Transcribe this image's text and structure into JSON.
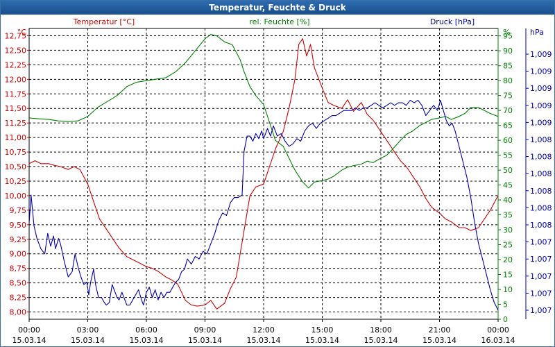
{
  "window": {
    "title": "Temperatur, Feuchte & Druck"
  },
  "colors": {
    "temperature": "#cc0000",
    "humidity": "#008000",
    "pressure": "#0000aa",
    "grid": "#000000",
    "titlebar": "#1f5a9c"
  },
  "chart_data": {
    "type": "line",
    "title": "Temperatur, Feuchte & Druck",
    "grid": true,
    "x": {
      "range": [
        0,
        24
      ],
      "ticks": [
        {
          "h": 0,
          "time": "00:00",
          "date": "15.03.14"
        },
        {
          "h": 3,
          "time": "03:00",
          "date": "15.03.14"
        },
        {
          "h": 6,
          "time": "06:00",
          "date": "15.03.14"
        },
        {
          "h": 9,
          "time": "09:00",
          "date": "15.03.14"
        },
        {
          "h": 12,
          "time": "12:00",
          "date": "15.03.14"
        },
        {
          "h": 15,
          "time": "15:00",
          "date": "15.03.14"
        },
        {
          "h": 18,
          "time": "18:00",
          "date": "15.03.14"
        },
        {
          "h": 21,
          "time": "21:00",
          "date": "15.03.14"
        },
        {
          "h": 24,
          "time": "00:00",
          "date": "16.03.14"
        }
      ]
    },
    "axes": {
      "temperature": {
        "unit": "°C",
        "label": "Temperatur [°C]",
        "range": [
          7.875,
          12.875
        ],
        "ticks": [
          "8,00",
          "8,25",
          "8,50",
          "8,75",
          "9,00",
          "9,25",
          "9,50",
          "9,75",
          "10,00",
          "10,25",
          "10,50",
          "10,75",
          "11,00",
          "11,25",
          "11,50",
          "11,75",
          "12,00",
          "12,25",
          "12,50",
          "12,75"
        ]
      },
      "humidity": {
        "unit": "%",
        "label": "rel. Feuchte [%]",
        "range": [
          0,
          97.5
        ],
        "ticks": [
          "0",
          "5",
          "10",
          "15",
          "20",
          "25",
          "30",
          "35",
          "40",
          "45",
          "50",
          "55",
          "60",
          "65",
          "70",
          "75",
          "80",
          "85",
          "90",
          "95"
        ]
      },
      "pressure": {
        "unit": "hPa",
        "label": "Druck [hPa]",
        "ticks": [
          "1,007",
          "1,007",
          "1,007",
          "1,007",
          "1,007",
          "1,008",
          "1,008",
          "1,008",
          "1,008",
          "1,008",
          "1,008",
          "1,009",
          "1,009",
          "1,009",
          "1,009",
          "1,009"
        ]
      }
    },
    "series": [
      {
        "name": "Temperatur [°C]",
        "axis": "temperature",
        "points": [
          [
            0,
            10.55
          ],
          [
            0.3,
            10.6
          ],
          [
            0.6,
            10.55
          ],
          [
            1,
            10.55
          ],
          [
            1.3,
            10.52
          ],
          [
            1.6,
            10.5
          ],
          [
            2,
            10.45
          ],
          [
            2.3,
            10.5
          ],
          [
            2.6,
            10.45
          ],
          [
            3,
            10.2
          ],
          [
            3.3,
            9.9
          ],
          [
            3.6,
            9.6
          ],
          [
            4,
            9.4
          ],
          [
            4.3,
            9.25
          ],
          [
            4.6,
            9.1
          ],
          [
            5,
            8.95
          ],
          [
            5.3,
            8.9
          ],
          [
            5.6,
            8.85
          ],
          [
            6,
            8.78
          ],
          [
            6.3,
            8.75
          ],
          [
            6.6,
            8.7
          ],
          [
            7,
            8.6
          ],
          [
            7.3,
            8.55
          ],
          [
            7.6,
            8.48
          ],
          [
            8,
            8.2
          ],
          [
            8.3,
            8.12
          ],
          [
            8.6,
            8.1
          ],
          [
            9,
            8.12
          ],
          [
            9.3,
            8.2
          ],
          [
            9.6,
            8.05
          ],
          [
            10,
            8.15
          ],
          [
            10.3,
            8.4
          ],
          [
            10.6,
            8.6
          ],
          [
            10.8,
            9.0
          ],
          [
            11,
            9.4
          ],
          [
            11.3,
            10
          ],
          [
            11.6,
            10.15
          ],
          [
            12,
            10.2
          ],
          [
            12.3,
            10.5
          ],
          [
            12.6,
            10.8
          ],
          [
            13,
            11.1
          ],
          [
            13.3,
            11.5
          ],
          [
            13.6,
            12.0
          ],
          [
            13.8,
            12.6
          ],
          [
            14,
            12.7
          ],
          [
            14.2,
            12.4
          ],
          [
            14.4,
            12.6
          ],
          [
            14.6,
            12.2
          ],
          [
            15,
            11.85
          ],
          [
            15.3,
            11.6
          ],
          [
            15.6,
            11.55
          ],
          [
            16,
            11.5
          ],
          [
            16.3,
            11.65
          ],
          [
            16.6,
            11.45
          ],
          [
            17,
            11.6
          ],
          [
            17.3,
            11.4
          ],
          [
            17.6,
            11.3
          ],
          [
            18,
            11.1
          ],
          [
            18.3,
            10.95
          ],
          [
            18.6,
            10.8
          ],
          [
            19,
            10.6
          ],
          [
            19.3,
            10.5
          ],
          [
            19.6,
            10.35
          ],
          [
            20,
            10.15
          ],
          [
            20.3,
            9.95
          ],
          [
            20.6,
            9.8
          ],
          [
            21,
            9.7
          ],
          [
            21.3,
            9.6
          ],
          [
            21.6,
            9.55
          ],
          [
            22,
            9.45
          ],
          [
            22.3,
            9.45
          ],
          [
            22.6,
            9.4
          ],
          [
            23,
            9.45
          ],
          [
            23.3,
            9.6
          ],
          [
            23.6,
            9.75
          ],
          [
            24,
            10.0
          ]
        ]
      },
      {
        "name": "rel. Feuchte [%]",
        "axis": "humidity",
        "points": [
          [
            0,
            67.5
          ],
          [
            0.5,
            67.2
          ],
          [
            1,
            67
          ],
          [
            1.5,
            66.5
          ],
          [
            2,
            66.3
          ],
          [
            2.5,
            66.5
          ],
          [
            3,
            68
          ],
          [
            3.5,
            71
          ],
          [
            4,
            73
          ],
          [
            4.5,
            75
          ],
          [
            5,
            78
          ],
          [
            5.5,
            79.5
          ],
          [
            6,
            80
          ],
          [
            6.5,
            80.5
          ],
          [
            7,
            81
          ],
          [
            7.5,
            83
          ],
          [
            8,
            86
          ],
          [
            8.5,
            90
          ],
          [
            9,
            94
          ],
          [
            9.3,
            95.5
          ],
          [
            9.6,
            95
          ],
          [
            10,
            93
          ],
          [
            10.4,
            92
          ],
          [
            10.8,
            87
          ],
          [
            11,
            83
          ],
          [
            11.3,
            78
          ],
          [
            11.6,
            75
          ],
          [
            12,
            72
          ],
          [
            12.3,
            66
          ],
          [
            12.6,
            60
          ],
          [
            13,
            58
          ],
          [
            13.3,
            54
          ],
          [
            13.6,
            50
          ],
          [
            14,
            46
          ],
          [
            14.3,
            44
          ],
          [
            14.6,
            46
          ],
          [
            15,
            46.5
          ],
          [
            15.3,
            47
          ],
          [
            15.6,
            48
          ],
          [
            16,
            50
          ],
          [
            16.3,
            51
          ],
          [
            16.6,
            51.5
          ],
          [
            17,
            52
          ],
          [
            17.3,
            53
          ],
          [
            17.6,
            52.5
          ],
          [
            18,
            54
          ],
          [
            18.3,
            55
          ],
          [
            18.6,
            57
          ],
          [
            19,
            60
          ],
          [
            19.3,
            62
          ],
          [
            19.6,
            63
          ],
          [
            20,
            65
          ],
          [
            20.3,
            66
          ],
          [
            20.6,
            67
          ],
          [
            21,
            67.5
          ],
          [
            21.3,
            68
          ],
          [
            21.6,
            67
          ],
          [
            22,
            68
          ],
          [
            22.3,
            69
          ],
          [
            22.6,
            71
          ],
          [
            23,
            71
          ],
          [
            23.3,
            70
          ],
          [
            23.6,
            69
          ],
          [
            24,
            68
          ]
        ]
      },
      {
        "name": "Druck [hPa]",
        "axis": "pressure",
        "pressure_norm": "0 = 1,007 lowest tick, 1 = 1,009 top tick",
        "points": [
          [
            0,
            0.34
          ],
          [
            0.1,
            0.45
          ],
          [
            0.25,
            0.33
          ],
          [
            0.4,
            0.28
          ],
          [
            0.6,
            0.24
          ],
          [
            0.8,
            0.22
          ],
          [
            0.95,
            0.3
          ],
          [
            1.1,
            0.25
          ],
          [
            1.25,
            0.29
          ],
          [
            1.35,
            0.24
          ],
          [
            1.5,
            0.28
          ],
          [
            1.6,
            0.26
          ],
          [
            1.8,
            0.19
          ],
          [
            1.9,
            0.16
          ],
          [
            2,
            0.13
          ],
          [
            2.2,
            0.15
          ],
          [
            2.35,
            0.22
          ],
          [
            2.5,
            0.17
          ],
          [
            2.65,
            0.13
          ],
          [
            2.8,
            0.1
          ],
          [
            2.95,
            0.11
          ],
          [
            3.05,
            0.06
          ],
          [
            3.15,
            0.11
          ],
          [
            3.3,
            0.16
          ],
          [
            3.4,
            0.1
          ],
          [
            3.55,
            0.05
          ],
          [
            3.7,
            0.05
          ],
          [
            3.85,
            0.03
          ],
          [
            3.95,
            0.02
          ],
          [
            4.1,
            0.03
          ],
          [
            4.25,
            0.1
          ],
          [
            4.35,
            0.08
          ],
          [
            4.5,
            0.05
          ],
          [
            4.6,
            0.04
          ],
          [
            4.75,
            0.07
          ],
          [
            4.85,
            0.05
          ],
          [
            5.0,
            0.02
          ],
          [
            5.15,
            0.02
          ],
          [
            5.3,
            0.04
          ],
          [
            5.45,
            0.06
          ],
          [
            5.6,
            0.08
          ],
          [
            5.75,
            0.04
          ],
          [
            5.85,
            0.02
          ],
          [
            6.0,
            0.07
          ],
          [
            6.15,
            0.09
          ],
          [
            6.3,
            0.05
          ],
          [
            6.45,
            0.08
          ],
          [
            6.6,
            0.04
          ],
          [
            6.75,
            0.07
          ],
          [
            6.9,
            0.05
          ],
          [
            7.05,
            0.07
          ],
          [
            7.2,
            0.07
          ],
          [
            7.35,
            0.09
          ],
          [
            7.5,
            0.11
          ],
          [
            7.65,
            0.12
          ],
          [
            7.8,
            0.15
          ],
          [
            7.95,
            0.16
          ],
          [
            8.1,
            0.2
          ],
          [
            8.3,
            0.18
          ],
          [
            8.5,
            0.21
          ],
          [
            8.7,
            0.2
          ],
          [
            8.9,
            0.23
          ],
          [
            9.1,
            0.22
          ],
          [
            9.3,
            0.26
          ],
          [
            9.5,
            0.3
          ],
          [
            9.7,
            0.35
          ],
          [
            9.9,
            0.38
          ],
          [
            10.1,
            0.37
          ],
          [
            10.3,
            0.42
          ],
          [
            10.5,
            0.44
          ],
          [
            10.7,
            0.44
          ],
          [
            10.9,
            0.45
          ],
          [
            11.0,
            0.62
          ],
          [
            11.15,
            0.68
          ],
          [
            11.3,
            0.68
          ],
          [
            11.45,
            0.66
          ],
          [
            11.6,
            0.69
          ],
          [
            11.75,
            0.67
          ],
          [
            11.9,
            0.7
          ],
          [
            12.0,
            0.67
          ],
          [
            12.2,
            0.71
          ],
          [
            12.35,
            0.68
          ],
          [
            12.5,
            0.72
          ],
          [
            12.7,
            0.68
          ],
          [
            12.9,
            0.69
          ],
          [
            13.1,
            0.66
          ],
          [
            13.3,
            0.64
          ],
          [
            13.5,
            0.65
          ],
          [
            13.7,
            0.67
          ],
          [
            13.9,
            0.66
          ],
          [
            14.1,
            0.7
          ],
          [
            14.3,
            0.72
          ],
          [
            14.5,
            0.73
          ],
          [
            14.7,
            0.71
          ],
          [
            14.9,
            0.73
          ],
          [
            15.1,
            0.74
          ],
          [
            15.3,
            0.75
          ],
          [
            15.5,
            0.76
          ],
          [
            15.7,
            0.76
          ],
          [
            15.9,
            0.77
          ],
          [
            16.1,
            0.78
          ],
          [
            16.3,
            0.78
          ],
          [
            16.5,
            0.78
          ],
          [
            16.7,
            0.79
          ],
          [
            16.9,
            0.78
          ],
          [
            17.1,
            0.79
          ],
          [
            17.3,
            0.79
          ],
          [
            17.5,
            0.8
          ],
          [
            17.7,
            0.81
          ],
          [
            17.9,
            0.8
          ],
          [
            18.1,
            0.79
          ],
          [
            18.3,
            0.8
          ],
          [
            18.5,
            0.81
          ],
          [
            18.7,
            0.8
          ],
          [
            18.9,
            0.81
          ],
          [
            19.1,
            0.81
          ],
          [
            19.3,
            0.8
          ],
          [
            19.5,
            0.82
          ],
          [
            19.7,
            0.81
          ],
          [
            19.9,
            0.82
          ],
          [
            20.1,
            0.8
          ],
          [
            20.3,
            0.76
          ],
          [
            20.5,
            0.78
          ],
          [
            20.7,
            0.8
          ],
          [
            20.9,
            0.78
          ],
          [
            21.05,
            0.82
          ],
          [
            21.2,
            0.78
          ],
          [
            21.35,
            0.74
          ],
          [
            21.5,
            0.72
          ],
          [
            21.65,
            0.73
          ],
          [
            21.8,
            0.7
          ],
          [
            22.0,
            0.64
          ],
          [
            22.2,
            0.58
          ],
          [
            22.4,
            0.52
          ],
          [
            22.6,
            0.44
          ],
          [
            22.8,
            0.34
          ],
          [
            23.0,
            0.26
          ],
          [
            23.2,
            0.2
          ],
          [
            23.4,
            0.14
          ],
          [
            23.6,
            0.08
          ],
          [
            23.8,
            0.03
          ],
          [
            24.0,
            0.0
          ]
        ]
      }
    ]
  }
}
